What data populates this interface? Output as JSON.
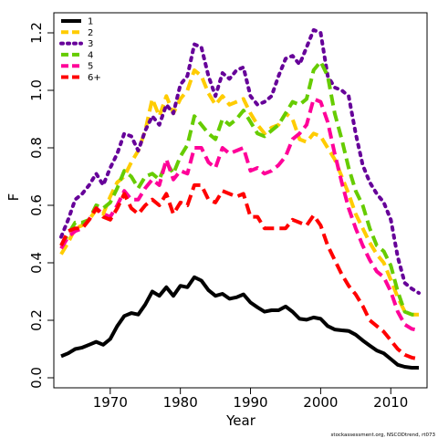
{
  "chart_data": {
    "type": "line",
    "title": "",
    "xlabel": "Year",
    "ylabel": "F",
    "xlim": [
      1962,
      2016
    ],
    "ylim": [
      0,
      1.25
    ],
    "xticks": [
      1970,
      1980,
      1990,
      2000,
      2010
    ],
    "yticks": [
      0.0,
      0.2,
      0.4,
      0.6,
      0.8,
      1.0,
      1.2
    ],
    "ytick_labels": [
      "0.0",
      "0.2",
      "0.4",
      "0.6",
      "0.8",
      "1.0",
      "1.2"
    ],
    "grid": false,
    "legend_position": "top-left",
    "x": [
      1963,
      1964,
      1965,
      1966,
      1967,
      1968,
      1969,
      1970,
      1971,
      1972,
      1973,
      1974,
      1975,
      1976,
      1977,
      1978,
      1979,
      1980,
      1981,
      1982,
      1983,
      1984,
      1985,
      1986,
      1987,
      1988,
      1989,
      1990,
      1991,
      1992,
      1993,
      1994,
      1995,
      1996,
      1997,
      1998,
      1999,
      2000,
      2001,
      2002,
      2003,
      2004,
      2005,
      2006,
      2007,
      2008,
      2009,
      2010,
      2011,
      2012,
      2013,
      2014
    ],
    "series": [
      {
        "name": "1",
        "color": "#000000",
        "dash": "solid",
        "values": [
          0.075,
          0.085,
          0.1,
          0.105,
          0.115,
          0.125,
          0.115,
          0.135,
          0.18,
          0.215,
          0.225,
          0.22,
          0.255,
          0.3,
          0.285,
          0.315,
          0.285,
          0.32,
          0.315,
          0.35,
          0.338,
          0.305,
          0.285,
          0.292,
          0.275,
          0.28,
          0.29,
          0.262,
          0.245,
          0.23,
          0.235,
          0.235,
          0.248,
          0.23,
          0.205,
          0.202,
          0.21,
          0.205,
          0.18,
          0.168,
          0.165,
          0.163,
          0.15,
          0.13,
          0.112,
          0.095,
          0.085,
          0.065,
          0.045,
          0.038,
          0.035,
          0.035
        ]
      },
      {
        "name": "2",
        "color": "#ffcc00",
        "dash": "dash",
        "values": [
          0.43,
          0.47,
          0.52,
          0.53,
          0.55,
          0.585,
          0.57,
          0.63,
          0.68,
          0.7,
          0.75,
          0.79,
          0.86,
          0.97,
          0.91,
          0.98,
          0.92,
          0.97,
          1.0,
          1.07,
          1.05,
          0.99,
          0.95,
          0.98,
          0.95,
          0.96,
          0.97,
          0.92,
          0.88,
          0.85,
          0.87,
          0.88,
          0.92,
          0.9,
          0.83,
          0.82,
          0.85,
          0.84,
          0.8,
          0.76,
          0.7,
          0.64,
          0.57,
          0.52,
          0.47,
          0.43,
          0.4,
          0.34,
          0.28,
          0.23,
          0.22,
          0.22
        ]
      },
      {
        "name": "3",
        "color": "#660099",
        "dash": "dot",
        "values": [
          0.49,
          0.55,
          0.62,
          0.64,
          0.67,
          0.71,
          0.67,
          0.73,
          0.78,
          0.85,
          0.84,
          0.79,
          0.86,
          0.91,
          0.88,
          0.95,
          0.92,
          1.02,
          1.05,
          1.16,
          1.15,
          1.05,
          0.98,
          1.06,
          1.04,
          1.07,
          1.08,
          0.98,
          0.95,
          0.96,
          0.98,
          1.05,
          1.11,
          1.12,
          1.09,
          1.15,
          1.21,
          1.2,
          1.05,
          1.01,
          1.0,
          0.98,
          0.85,
          0.74,
          0.68,
          0.64,
          0.61,
          0.55,
          0.42,
          0.33,
          0.31,
          0.295
        ]
      },
      {
        "name": "4",
        "color": "#66cc00",
        "dash": "dash",
        "values": [
          0.46,
          0.5,
          0.54,
          0.54,
          0.55,
          0.6,
          0.59,
          0.61,
          0.66,
          0.72,
          0.7,
          0.66,
          0.7,
          0.71,
          0.69,
          0.75,
          0.71,
          0.77,
          0.81,
          0.91,
          0.88,
          0.85,
          0.83,
          0.9,
          0.88,
          0.9,
          0.93,
          0.89,
          0.85,
          0.84,
          0.86,
          0.88,
          0.92,
          0.96,
          0.95,
          0.97,
          1.07,
          1.1,
          1.05,
          0.92,
          0.83,
          0.73,
          0.65,
          0.6,
          0.52,
          0.46,
          0.44,
          0.39,
          0.3,
          0.23,
          0.22,
          0.22
        ]
      },
      {
        "name": "5",
        "color": "#ff0099",
        "dash": "dash",
        "values": [
          0.45,
          0.49,
          0.51,
          0.52,
          0.55,
          0.59,
          0.57,
          0.56,
          0.6,
          0.65,
          0.62,
          0.62,
          0.66,
          0.69,
          0.67,
          0.76,
          0.69,
          0.72,
          0.71,
          0.8,
          0.8,
          0.75,
          0.73,
          0.8,
          0.78,
          0.79,
          0.8,
          0.72,
          0.73,
          0.71,
          0.72,
          0.74,
          0.77,
          0.83,
          0.85,
          0.88,
          0.97,
          0.96,
          0.89,
          0.78,
          0.68,
          0.59,
          0.52,
          0.46,
          0.41,
          0.37,
          0.35,
          0.3,
          0.23,
          0.185,
          0.17,
          0.165
        ]
      },
      {
        "name": "6+",
        "color": "#ff0000",
        "dash": "dash",
        "values": [
          0.46,
          0.51,
          0.52,
          0.52,
          0.55,
          0.59,
          0.56,
          0.55,
          0.59,
          0.64,
          0.59,
          0.57,
          0.6,
          0.62,
          0.6,
          0.64,
          0.57,
          0.61,
          0.6,
          0.67,
          0.67,
          0.62,
          0.61,
          0.65,
          0.64,
          0.63,
          0.64,
          0.56,
          0.56,
          0.52,
          0.52,
          0.52,
          0.52,
          0.55,
          0.54,
          0.53,
          0.565,
          0.53,
          0.46,
          0.41,
          0.36,
          0.32,
          0.29,
          0.25,
          0.2,
          0.18,
          0.16,
          0.13,
          0.1,
          0.08,
          0.07,
          0.065
        ]
      }
    ],
    "credit": "stockassessment.org, NSCODtrend, rt073"
  }
}
